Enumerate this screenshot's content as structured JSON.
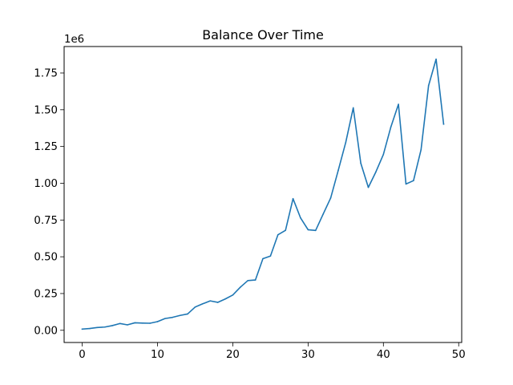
{
  "chart_data": {
    "type": "line",
    "title": "Balance Over Time",
    "xlabel": "",
    "ylabel": "",
    "y_offset_label": "1e6",
    "xlim": [
      -2.4,
      50.4
    ],
    "ylim": [
      -0.083,
      1.93
    ],
    "x_ticks": [
      0,
      10,
      20,
      30,
      40,
      50
    ],
    "x_tick_labels": [
      "0",
      "10",
      "20",
      "30",
      "40",
      "50"
    ],
    "y_ticks": [
      0.0,
      0.25,
      0.5,
      0.75,
      1.0,
      1.25,
      1.5,
      1.75
    ],
    "y_tick_labels": [
      "0.00",
      "0.25",
      "0.50",
      "0.75",
      "1.00",
      "1.25",
      "1.50",
      "1.75"
    ],
    "grid": false,
    "legend": "none",
    "line_color": "#1f77b4",
    "series": [
      {
        "x": [
          0,
          1,
          2,
          3,
          4,
          5,
          6,
          7,
          8,
          9,
          10,
          11,
          12,
          13,
          14,
          15,
          16,
          17,
          18,
          19,
          20,
          21,
          22,
          23,
          24,
          25,
          26,
          27,
          28,
          29,
          30,
          31,
          32,
          33,
          34,
          35,
          36,
          37,
          38,
          39,
          40,
          41,
          42,
          43,
          44,
          45,
          46,
          47,
          48
        ],
        "values": [
          0.008,
          0.012,
          0.019,
          0.022,
          0.032,
          0.046,
          0.037,
          0.051,
          0.049,
          0.048,
          0.059,
          0.08,
          0.088,
          0.101,
          0.111,
          0.158,
          0.18,
          0.2,
          0.19,
          0.213,
          0.24,
          0.293,
          0.338,
          0.342,
          0.487,
          0.505,
          0.65,
          0.68,
          0.895,
          0.764,
          0.684,
          0.679,
          0.79,
          0.9,
          1.087,
          1.278,
          1.513,
          1.136,
          0.972,
          1.077,
          1.196,
          1.384,
          1.537,
          0.995,
          1.018,
          1.228,
          1.664,
          1.844,
          1.402
        ]
      }
    ]
  }
}
